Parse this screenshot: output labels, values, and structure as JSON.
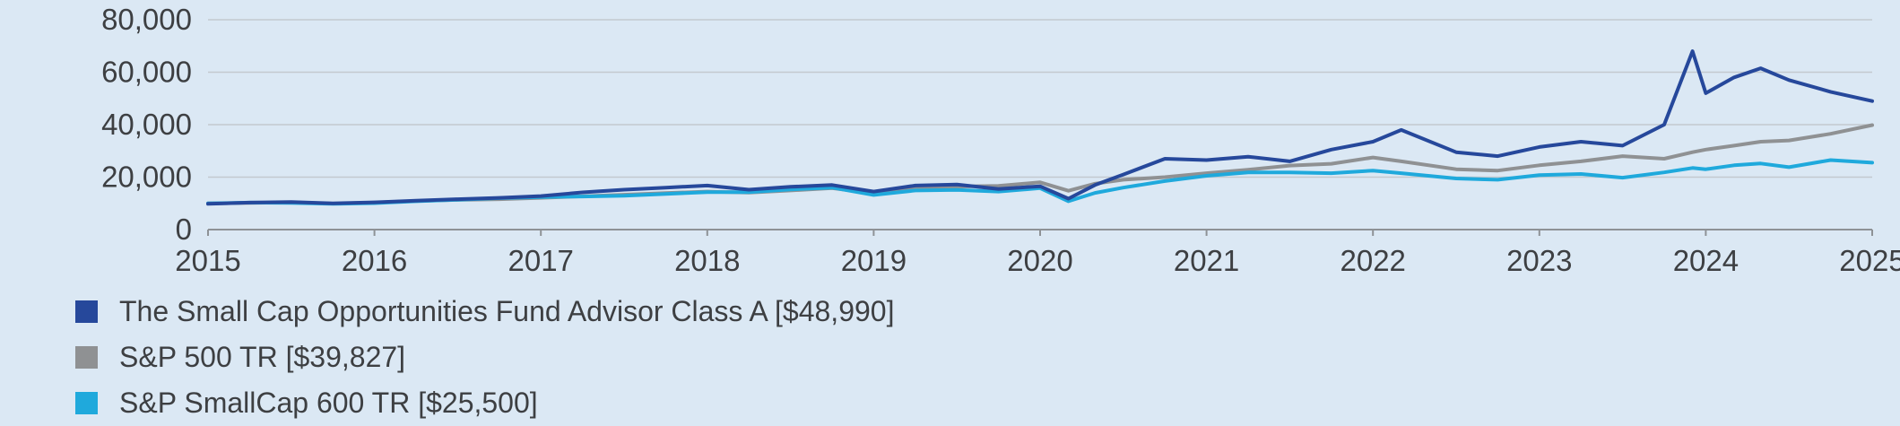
{
  "page": {
    "background_color": "#dbe8f4",
    "text_color": "#3d3f42",
    "grid_color": "#c3c9cf",
    "axis_color": "#8e9296"
  },
  "legend": {
    "items": [
      {
        "label": "The Small Cap Opportunities Fund Advisor Class A [$48,990]",
        "color": "#26489b"
      },
      {
        "label": "S&P 500 TR [$39,827]",
        "color": "#8f9193"
      },
      {
        "label": "S&P SmallCap 600 TR [$25,500]",
        "color": "#1fa9dc"
      }
    ]
  },
  "chart_data": {
    "type": "line",
    "title": "",
    "xlabel": "",
    "ylabel": "",
    "grid": true,
    "legend_position": "bottom-left",
    "xlim": [
      2015,
      2025
    ],
    "ylim": [
      0,
      80000
    ],
    "x_ticks": [
      2015,
      2016,
      2017,
      2018,
      2019,
      2020,
      2021,
      2022,
      2023,
      2024,
      2025
    ],
    "x_tick_labels": [
      "2015",
      "2016",
      "2017",
      "2018",
      "2019",
      "2020",
      "2021",
      "2022",
      "2023",
      "2024",
      "2025"
    ],
    "y_ticks": [
      0,
      20000,
      40000,
      60000,
      80000
    ],
    "y_tick_labels": [
      "0",
      "20,000",
      "40,000",
      "60,000",
      "80,000"
    ],
    "x": [
      2015.0,
      2015.25,
      2015.5,
      2015.75,
      2016.0,
      2016.25,
      2016.5,
      2016.75,
      2017.0,
      2017.25,
      2017.5,
      2017.75,
      2018.0,
      2018.25,
      2018.5,
      2018.75,
      2019.0,
      2019.25,
      2019.5,
      2019.75,
      2020.0,
      2020.17,
      2020.33,
      2020.5,
      2020.75,
      2021.0,
      2021.25,
      2021.5,
      2021.75,
      2022.0,
      2022.17,
      2022.5,
      2022.75,
      2023.0,
      2023.25,
      2023.5,
      2023.75,
      2023.92,
      2024.0,
      2024.17,
      2024.33,
      2024.5,
      2024.75,
      2025.0
    ],
    "series": [
      {
        "name": "The Small Cap Opportunities Fund Advisor Class A",
        "final_value": 48990,
        "color": "#26489b",
        "stroke_width": 4,
        "values": [
          9800,
          10300,
          10500,
          10000,
          10400,
          11000,
          11600,
          12100,
          12800,
          14200,
          15200,
          16000,
          16800,
          15200,
          16300,
          17000,
          14500,
          16800,
          17200,
          15500,
          16500,
          11800,
          17000,
          21000,
          27000,
          26500,
          27800,
          26000,
          30500,
          33500,
          38000,
          29500,
          28000,
          31500,
          33500,
          32000,
          40000,
          68000,
          52000,
          58000,
          61500,
          57000,
          52500,
          48990
        ]
      },
      {
        "name": "S&P 500 TR",
        "final_value": 39827,
        "color": "#8f9193",
        "stroke_width": 4,
        "values": [
          10000,
          10200,
          10400,
          9900,
          10300,
          10900,
          11300,
          11600,
          12100,
          12700,
          13300,
          13900,
          14500,
          14100,
          14900,
          15800,
          13800,
          15700,
          16400,
          16700,
          18000,
          14800,
          17500,
          19000,
          20000,
          21500,
          22800,
          24400,
          25100,
          27500,
          26000,
          23000,
          22500,
          24500,
          26000,
          28000,
          27000,
          29500,
          30500,
          32000,
          33500,
          34000,
          36500,
          39827
        ]
      },
      {
        "name": "S&P SmallCap 600 TR",
        "final_value": 25500,
        "color": "#1fa9dc",
        "stroke_width": 4,
        "values": [
          10000,
          10300,
          10200,
          9800,
          10100,
          10800,
          11400,
          12000,
          12400,
          12600,
          12900,
          13600,
          14300,
          14300,
          15300,
          16000,
          13200,
          14900,
          15100,
          14500,
          15800,
          10800,
          14000,
          16000,
          18500,
          20500,
          21800,
          21800,
          21500,
          22500,
          21500,
          19500,
          19000,
          20800,
          21200,
          19800,
          21800,
          23500,
          23000,
          24500,
          25200,
          23800,
          26500,
          25500
        ]
      }
    ]
  }
}
